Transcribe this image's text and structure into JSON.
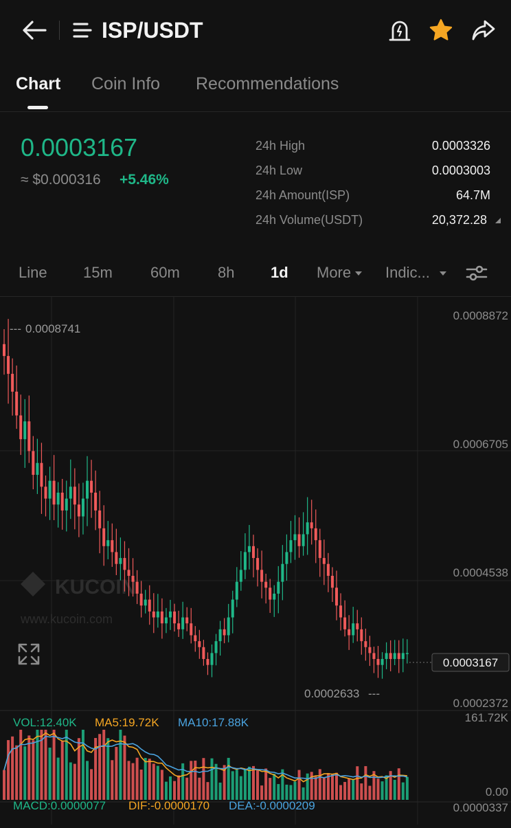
{
  "header": {
    "back_icon": "arrow-left-icon",
    "menu_icon": "hamburger-menu-icon",
    "title": "ISP/USDT",
    "alert_icon": "price-alert-icon",
    "favorite_icon": "star-icon",
    "share_icon": "share-icon",
    "favorite_color": "#f5a623"
  },
  "tabs": [
    {
      "label": "Chart",
      "active": true
    },
    {
      "label": "Coin Info",
      "active": false
    },
    {
      "label": "Recommendations",
      "active": false
    }
  ],
  "ticker": {
    "last_price": "0.0003167",
    "usd_price": "≈ $0.000316",
    "change": "+5.46%",
    "up_color": "#1fb788",
    "down_color": "#f05a5a",
    "stats": [
      {
        "label": "24h High",
        "value": "0.0003326"
      },
      {
        "label": "24h Low",
        "value": "0.0003003"
      },
      {
        "label": "24h Amount(ISP)",
        "value": "64.7M"
      },
      {
        "label": "24h Volume(USDT)",
        "value": "20,372.28"
      }
    ]
  },
  "timeframes": [
    {
      "label": "Line",
      "active": false
    },
    {
      "label": "15m",
      "active": false
    },
    {
      "label": "60m",
      "active": false
    },
    {
      "label": "8h",
      "active": false
    },
    {
      "label": "1d",
      "active": true
    },
    {
      "label": "More",
      "active": false,
      "dropdown": true
    },
    {
      "label": "Indic...",
      "active": false,
      "dropdown": true
    }
  ],
  "settings_icon": "sliders-icon",
  "chart": {
    "watermark_name": "KUCOIN",
    "watermark_url": "www.kucoin.com",
    "fullscreen_icon": "expand-icon",
    "price_axis": [
      "0.0008872",
      "0.0006705",
      "0.0004538",
      "0.0002372"
    ],
    "max_marker": "0.0008741",
    "min_marker": "0.0002633",
    "current_price_tag": "0.0003167",
    "volume": {
      "vol_label": "VOL:12.40K",
      "ma5_label": "MA5:19.72K",
      "ma10_label": "MA10:17.88K",
      "axis_top": "161.72K",
      "axis_bottom": "0.00",
      "vol_color": "#1fb788",
      "ma5_color": "#f5a623",
      "ma10_color": "#4aa3df"
    },
    "macd": {
      "macd_label": "MACD:0.0000077",
      "dif_label": "DIF:-0.0000170",
      "dea_label": "DEA:-0.0000209",
      "axis_top": "0.0000337"
    }
  },
  "chart_data": {
    "type": "candlestick",
    "timeframe": "1d",
    "y_axis_range": [
      0.0002372,
      0.0008872
    ],
    "y_axis_ticks": [
      0.0008872,
      0.0006705,
      0.0004538,
      0.0002372
    ],
    "highest": 0.0008741,
    "lowest": 0.0002633,
    "last": 0.0003167,
    "close_series_approx": [
      0.00082,
      0.00079,
      0.00076,
      0.00072,
      0.00068,
      0.00071,
      0.00066,
      0.00062,
      0.00064,
      0.0006,
      0.00058,
      0.00061,
      0.00057,
      0.00059,
      0.00056,
      0.00058,
      0.0006,
      0.00057,
      0.00055,
      0.00058,
      0.00061,
      0.00059,
      0.00056,
      0.00053,
      0.0005,
      0.00051,
      0.00049,
      0.00047,
      0.00048,
      0.00046,
      0.00045,
      0.00044,
      0.00042,
      0.0004,
      0.00041,
      0.00039,
      0.00038,
      0.00039,
      0.00037,
      0.00038,
      0.00039,
      0.00037,
      0.00036,
      0.00038,
      0.00037,
      0.00035,
      0.00034,
      0.00033,
      0.00031,
      0.0003,
      0.00032,
      0.00034,
      0.00036,
      0.00035,
      0.00038,
      0.00041,
      0.00044,
      0.00046,
      0.00049,
      0.0005,
      0.00048,
      0.00046,
      0.00044,
      0.00043,
      0.00041,
      0.00042,
      0.00044,
      0.00047,
      0.00049,
      0.00051,
      0.00052,
      0.0005,
      0.00052,
      0.00054,
      0.00053,
      0.00051,
      0.00048,
      0.00047,
      0.00045,
      0.00043,
      0.0004,
      0.00038,
      0.00036,
      0.00035,
      0.00037,
      0.00036,
      0.00034,
      0.00033,
      0.00032,
      0.00031,
      0.0003,
      0.00031,
      0.00032,
      0.00031,
      0.00032,
      0.00031,
      0.00032,
      0.00032
    ]
  }
}
